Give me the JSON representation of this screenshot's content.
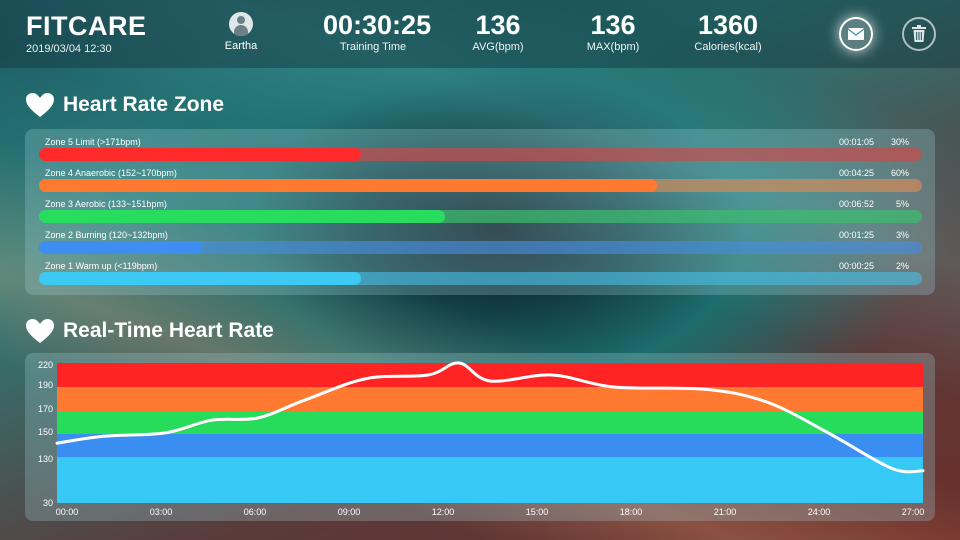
{
  "header": {
    "brand": "FITCARE",
    "datetime": "2019/03/04 12:30",
    "user_name": "Eartha",
    "stats": [
      {
        "value": "00:30:25",
        "label": "Training Time"
      },
      {
        "value": "136",
        "label": "AVG(bpm)"
      },
      {
        "value": "136",
        "label": "MAX(bpm)"
      },
      {
        "value": "1360",
        "label": "Calories(kcal)"
      }
    ],
    "icons": {
      "user": "user-avatar-icon",
      "mail": "mail-icon",
      "trash": "trash-icon",
      "heart": "heart-icon"
    }
  },
  "zones_section": {
    "title": "Heart Rate Zone",
    "zones": [
      {
        "label": "Zone 5  Limit (>171bpm)",
        "time": "00:01:05",
        "percent": "30%",
        "fill": 0.365,
        "color": "#ff2a2a",
        "track": "rgba(210,70,70,0.65)"
      },
      {
        "label": "Zone 4  Anaerobic (152~170bpm)",
        "time": "00:04:25",
        "percent": "60%",
        "fill": 0.7,
        "color": "#ff7a30",
        "track": "rgba(210,140,90,0.7)"
      },
      {
        "label": "Zone 3  Aerobic (133~151bpm)",
        "time": "00:06:52",
        "percent": "5%",
        "fill": 0.46,
        "color": "#28dd5e",
        "track": "rgba(60,190,110,0.7)"
      },
      {
        "label": "Zone 2  Burning (120~132bpm)",
        "time": "00:01:25",
        "percent": "3%",
        "fill": 0.185,
        "color": "#3d8ef0",
        "track": "rgba(70,140,220,0.65)"
      },
      {
        "label": "Zone 1  Warm up (<119bpm)",
        "time": "00:00:25",
        "percent": "2%",
        "fill": 0.365,
        "color": "#3ccaf4",
        "track": "rgba(70,190,230,0.6)"
      }
    ]
  },
  "chart_section": {
    "title": "Real-Time Heart Rate"
  },
  "chart_data": {
    "type": "line",
    "title": "",
    "xlabel": "",
    "ylabel": "",
    "y_ticks": [
      "220",
      "190",
      "170",
      "150",
      "130",
      "30"
    ],
    "x_ticks": [
      "00:00",
      "03:00",
      "06:00",
      "09:00",
      "12:00",
      "15:00",
      "18:00",
      "21:00",
      "24:00",
      "27:00"
    ],
    "bands": [
      {
        "from": "190",
        "to": "220",
        "color": "#ff2424"
      },
      {
        "from": "170",
        "to": "190",
        "color": "#ff7a30"
      },
      {
        "from": "150",
        "to": "170",
        "color": "#26dc5a"
      },
      {
        "from": "130",
        "to": "150",
        "color": "#3a8ef2"
      },
      {
        "from": "30",
        "to": "130",
        "color": "#36c9f6"
      }
    ],
    "series": [
      {
        "values_rank": [
          [
            0,
            1.6
          ],
          [
            1.5,
            1.9
          ],
          [
            3.5,
            2.05
          ],
          [
            5,
            2.6
          ],
          [
            6.5,
            2.7
          ],
          [
            8,
            3.45
          ],
          [
            10,
            4.35
          ],
          [
            12,
            4.5
          ],
          [
            13,
            5.0
          ],
          [
            14,
            4.25
          ],
          [
            16,
            4.5
          ],
          [
            18,
            4.0
          ],
          [
            21,
            3.9
          ],
          [
            23,
            3.35
          ],
          [
            25,
            2.0
          ],
          [
            27,
            0.75
          ],
          [
            28,
            0.7
          ]
        ]
      }
    ],
    "line_color": "#ffffff"
  }
}
